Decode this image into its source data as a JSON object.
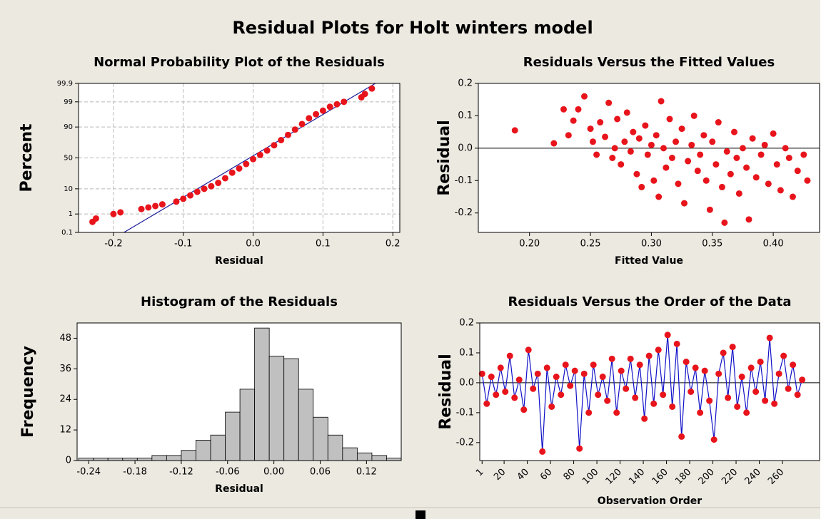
{
  "title": "Residual Plots for Holt winters model",
  "chart_data": [
    {
      "type": "scatter",
      "title": "Normal Probability Plot of the Residuals",
      "x_label": "Residual",
      "y_label": "Percent",
      "yscale": "probability",
      "grid": true,
      "marker_color": "#e8141c",
      "fit_line_color": "#1a1a9c",
      "xlim": [
        -0.25,
        0.21
      ],
      "xticks": [
        -0.2,
        -0.1,
        {
          "value": 0,
          "label": "0.0"
        },
        0.1,
        0.2
      ],
      "ylim": [
        0.1,
        99.9
      ],
      "yticks": [
        0.1,
        1,
        10,
        50,
        90,
        99,
        99.9
      ],
      "x": [
        -0.23,
        -0.225,
        -0.2,
        -0.19,
        -0.16,
        -0.15,
        -0.14,
        -0.13,
        -0.11,
        -0.1,
        -0.09,
        -0.08,
        -0.07,
        -0.06,
        -0.05,
        -0.04,
        -0.03,
        -0.02,
        -0.01,
        0,
        0.01,
        0.02,
        0.03,
        0.04,
        0.05,
        0.06,
        0.07,
        0.08,
        0.09,
        0.1,
        0.11,
        0.12,
        0.13,
        0.155,
        0.16,
        0.17
      ],
      "values": [
        0.4,
        0.6,
        1.0,
        1.2,
        1.7,
        2,
        2.3,
        2.7,
        3.5,
        4.5,
        6,
        8,
        10,
        12,
        15,
        20,
        27,
        33,
        40,
        48,
        55,
        62,
        70,
        77,
        83,
        88,
        92,
        95,
        96.5,
        97.5,
        98.3,
        98.7,
        99,
        99.4,
        99.6,
        99.8
      ],
      "fit_line": {
        "x": [
          -0.185,
          0.175
        ],
        "y": [
          0.1,
          99.9
        ]
      }
    },
    {
      "type": "scatter",
      "title": "Residuals Versus the Fitted Values",
      "x_label": "Fitted Value",
      "y_label": "Residual",
      "marker_color": "#e8141c",
      "reference_line": 0,
      "xlim": [
        0.158,
        0.438
      ],
      "xticks": [
        {
          "value": 0.2,
          "label": "0.20"
        },
        {
          "value": 0.25,
          "label": "0.25"
        },
        {
          "value": 0.3,
          "label": "0.30"
        },
        {
          "value": 0.35,
          "label": "0.35"
        },
        {
          "value": 0.4,
          "label": "0.40"
        }
      ],
      "ylim": [
        -0.26,
        0.2
      ],
      "yticks": [
        0.2,
        0.1,
        {
          "value": 0,
          "label": "0.0"
        },
        -0.1,
        -0.2
      ],
      "x": [
        0.188,
        0.22,
        0.228,
        0.232,
        0.236,
        0.24,
        0.245,
        0.25,
        0.252,
        0.255,
        0.258,
        0.262,
        0.265,
        0.268,
        0.27,
        0.272,
        0.275,
        0.278,
        0.28,
        0.283,
        0.285,
        0.288,
        0.29,
        0.292,
        0.295,
        0.297,
        0.3,
        0.302,
        0.304,
        0.306,
        0.308,
        0.31,
        0.312,
        0.315,
        0.317,
        0.32,
        0.322,
        0.325,
        0.327,
        0.33,
        0.333,
        0.335,
        0.338,
        0.34,
        0.343,
        0.345,
        0.348,
        0.35,
        0.353,
        0.355,
        0.358,
        0.36,
        0.362,
        0.365,
        0.368,
        0.37,
        0.372,
        0.375,
        0.378,
        0.38,
        0.383,
        0.386,
        0.39,
        0.393,
        0.396,
        0.4,
        0.403,
        0.406,
        0.41,
        0.413,
        0.416,
        0.42,
        0.425,
        0.428
      ],
      "values": [
        0.055,
        0.015,
        0.12,
        0.04,
        0.085,
        0.12,
        0.16,
        0.06,
        0.02,
        -0.02,
        0.08,
        0.035,
        0.14,
        -0.03,
        0,
        0.09,
        -0.05,
        0.02,
        0.11,
        -0.01,
        0.05,
        -0.08,
        0.03,
        -0.12,
        0.07,
        -0.02,
        0.01,
        -0.1,
        0.04,
        -0.15,
        0.145,
        0,
        -0.06,
        0.09,
        -0.03,
        0.02,
        -0.11,
        0.06,
        -0.17,
        -0.04,
        0.01,
        0.1,
        -0.07,
        -0.02,
        0.04,
        -0.1,
        -0.19,
        0.02,
        -0.05,
        0.08,
        -0.12,
        -0.23,
        -0.01,
        -0.08,
        0.05,
        -0.03,
        -0.14,
        0,
        -0.06,
        -0.22,
        0.03,
        -0.09,
        -0.02,
        0.01,
        -0.11,
        0.045,
        -0.05,
        -0.13,
        0,
        -0.03,
        -0.15,
        -0.07,
        -0.02,
        -0.1
      ]
    },
    {
      "type": "histogram",
      "title": "Histogram of the Residuals",
      "x_label": "Residual",
      "y_label": "Frequency",
      "color": "#c0c0c0",
      "xlim": [
        -0.255,
        0.165
      ],
      "xticks": [
        -0.24,
        -0.18,
        -0.12,
        -0.06,
        {
          "value": 0,
          "label": "0.00"
        },
        0.06,
        0.12
      ],
      "ylim": [
        0,
        54
      ],
      "yticks": [
        0,
        12,
        24,
        36,
        48
      ],
      "bins": [
        -0.253,
        -0.234,
        -0.215,
        -0.196,
        -0.177,
        -0.158,
        -0.139,
        -0.12,
        -0.101,
        -0.082,
        -0.063,
        -0.044,
        -0.025,
        -0.006,
        0.013,
        0.032,
        0.051,
        0.07,
        0.089,
        0.108,
        0.127,
        0.146,
        0.165
      ],
      "values": [
        1,
        1,
        1,
        1,
        1,
        2,
        2,
        4,
        8,
        10,
        19,
        28,
        52,
        41,
        40,
        28,
        17,
        10,
        5,
        3,
        2,
        1
      ]
    },
    {
      "type": "line",
      "title": "Residuals Versus the Order of the Data",
      "x_label": "Observation Order",
      "y_label": "Residual",
      "marker_color": "#e8141c",
      "line_color": "#1010c8",
      "reference_line": 0,
      "xlim": [
        -1,
        292
      ],
      "xticks": [
        1,
        20,
        40,
        60,
        80,
        100,
        120,
        140,
        160,
        180,
        200,
        220,
        240,
        260
      ],
      "ylim": [
        -0.26,
        0.2
      ],
      "yticks": [
        0.2,
        0.1,
        {
          "value": 0,
          "label": "0.0"
        },
        -0.1,
        -0.2
      ],
      "x": [
        1,
        5,
        9,
        13,
        17,
        21,
        25,
        29,
        33,
        37,
        41,
        45,
        49,
        53,
        57,
        61,
        65,
        69,
        73,
        77,
        81,
        85,
        89,
        93,
        97,
        101,
        105,
        109,
        113,
        117,
        121,
        125,
        129,
        133,
        137,
        141,
        145,
        149,
        153,
        157,
        161,
        165,
        169,
        173,
        177,
        181,
        185,
        189,
        193,
        197,
        201,
        205,
        209,
        213,
        217,
        221,
        225,
        229,
        233,
        237,
        241,
        245,
        249,
        253,
        257,
        261,
        265,
        269,
        273,
        277
      ],
      "values": [
        0.03,
        -0.07,
        0.02,
        -0.04,
        0.05,
        -0.03,
        0.09,
        -0.05,
        0.01,
        -0.09,
        0.11,
        -0.02,
        0.03,
        -0.23,
        0.05,
        -0.08,
        0.02,
        -0.04,
        0.06,
        -0.01,
        0.04,
        -0.22,
        0.03,
        -0.1,
        0.06,
        -0.04,
        0.02,
        -0.06,
        0.08,
        -0.1,
        0.04,
        -0.02,
        0.08,
        -0.05,
        0.06,
        -0.12,
        0.09,
        -0.07,
        0.11,
        -0.04,
        0.16,
        -0.08,
        0.13,
        -0.18,
        0.07,
        -0.03,
        0.05,
        -0.1,
        0.04,
        -0.06,
        -0.19,
        0.03,
        0.1,
        -0.05,
        0.12,
        -0.08,
        0.02,
        -0.1,
        0.05,
        -0.03,
        0.07,
        -0.06,
        0.15,
        -0.07,
        0.03,
        0.09,
        -0.02,
        0.06,
        -0.04,
        0.01
      ]
    }
  ]
}
